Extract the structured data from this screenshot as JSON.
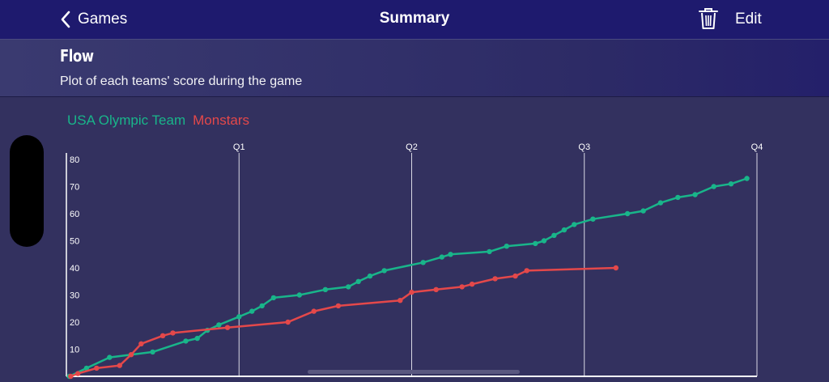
{
  "navbar": {
    "back_label": "Games",
    "title": "Summary",
    "edit_label": "Edit",
    "trash_icon": "trash-icon"
  },
  "section": {
    "title": "Flow",
    "description": "Plot of each teams' score during the game"
  },
  "legend": {
    "team_a": "USA Olympic Team",
    "team_b": "Monstars"
  },
  "colors": {
    "team_a": "#19b58a",
    "team_b": "#e4484a",
    "navbar": "#1e1a6e",
    "background": "#33315f"
  },
  "chart_data": {
    "type": "line",
    "title": "",
    "xlabel": "",
    "ylabel": "",
    "xlim": [
      0,
      48
    ],
    "ylim": [
      0,
      80
    ],
    "yticks": [
      "10",
      "20",
      "30",
      "40",
      "50",
      "60",
      "70",
      "80"
    ],
    "quarters": [
      {
        "label": "Q1",
        "x": 12
      },
      {
        "label": "Q2",
        "x": 24
      },
      {
        "label": "Q3",
        "x": 36
      },
      {
        "label": "Q4",
        "x": 48
      }
    ],
    "legend_position": "top-left",
    "series": [
      {
        "name": "USA Olympic Team",
        "color": "#19b58a",
        "points": [
          [
            0.2,
            0
          ],
          [
            1.4,
            3
          ],
          [
            3.0,
            7
          ],
          [
            6.0,
            9
          ],
          [
            8.3,
            13
          ],
          [
            9.1,
            14
          ],
          [
            9.8,
            17
          ],
          [
            10.6,
            19
          ],
          [
            12.0,
            22
          ],
          [
            12.9,
            24
          ],
          [
            13.6,
            26
          ],
          [
            14.4,
            29
          ],
          [
            16.2,
            30
          ],
          [
            18.0,
            32
          ],
          [
            19.6,
            33
          ],
          [
            20.3,
            35
          ],
          [
            21.1,
            37
          ],
          [
            22.1,
            39
          ],
          [
            24.8,
            42
          ],
          [
            26.1,
            44
          ],
          [
            26.7,
            45
          ],
          [
            29.4,
            46
          ],
          [
            30.6,
            48
          ],
          [
            32.6,
            49
          ],
          [
            33.2,
            50
          ],
          [
            33.9,
            52
          ],
          [
            34.6,
            54
          ],
          [
            35.3,
            56
          ],
          [
            36.6,
            58
          ],
          [
            39.0,
            60
          ],
          [
            40.1,
            61
          ],
          [
            41.3,
            64
          ],
          [
            42.5,
            66
          ],
          [
            43.7,
            67
          ],
          [
            45.0,
            70
          ],
          [
            46.2,
            71
          ],
          [
            47.3,
            73
          ]
        ]
      },
      {
        "name": "Monstars",
        "color": "#e4484a",
        "points": [
          [
            0.3,
            0
          ],
          [
            0.8,
            1
          ],
          [
            2.1,
            3
          ],
          [
            3.7,
            4
          ],
          [
            4.5,
            8
          ],
          [
            5.2,
            12
          ],
          [
            6.7,
            15
          ],
          [
            7.4,
            16
          ],
          [
            11.2,
            18
          ],
          [
            15.4,
            20
          ],
          [
            17.2,
            24
          ],
          [
            18.9,
            26
          ],
          [
            23.2,
            28
          ],
          [
            24.0,
            31
          ],
          [
            25.7,
            32
          ],
          [
            27.5,
            33
          ],
          [
            28.2,
            34
          ],
          [
            29.8,
            36
          ],
          [
            31.2,
            37
          ],
          [
            32.0,
            39
          ],
          [
            38.2,
            40
          ]
        ]
      }
    ]
  }
}
